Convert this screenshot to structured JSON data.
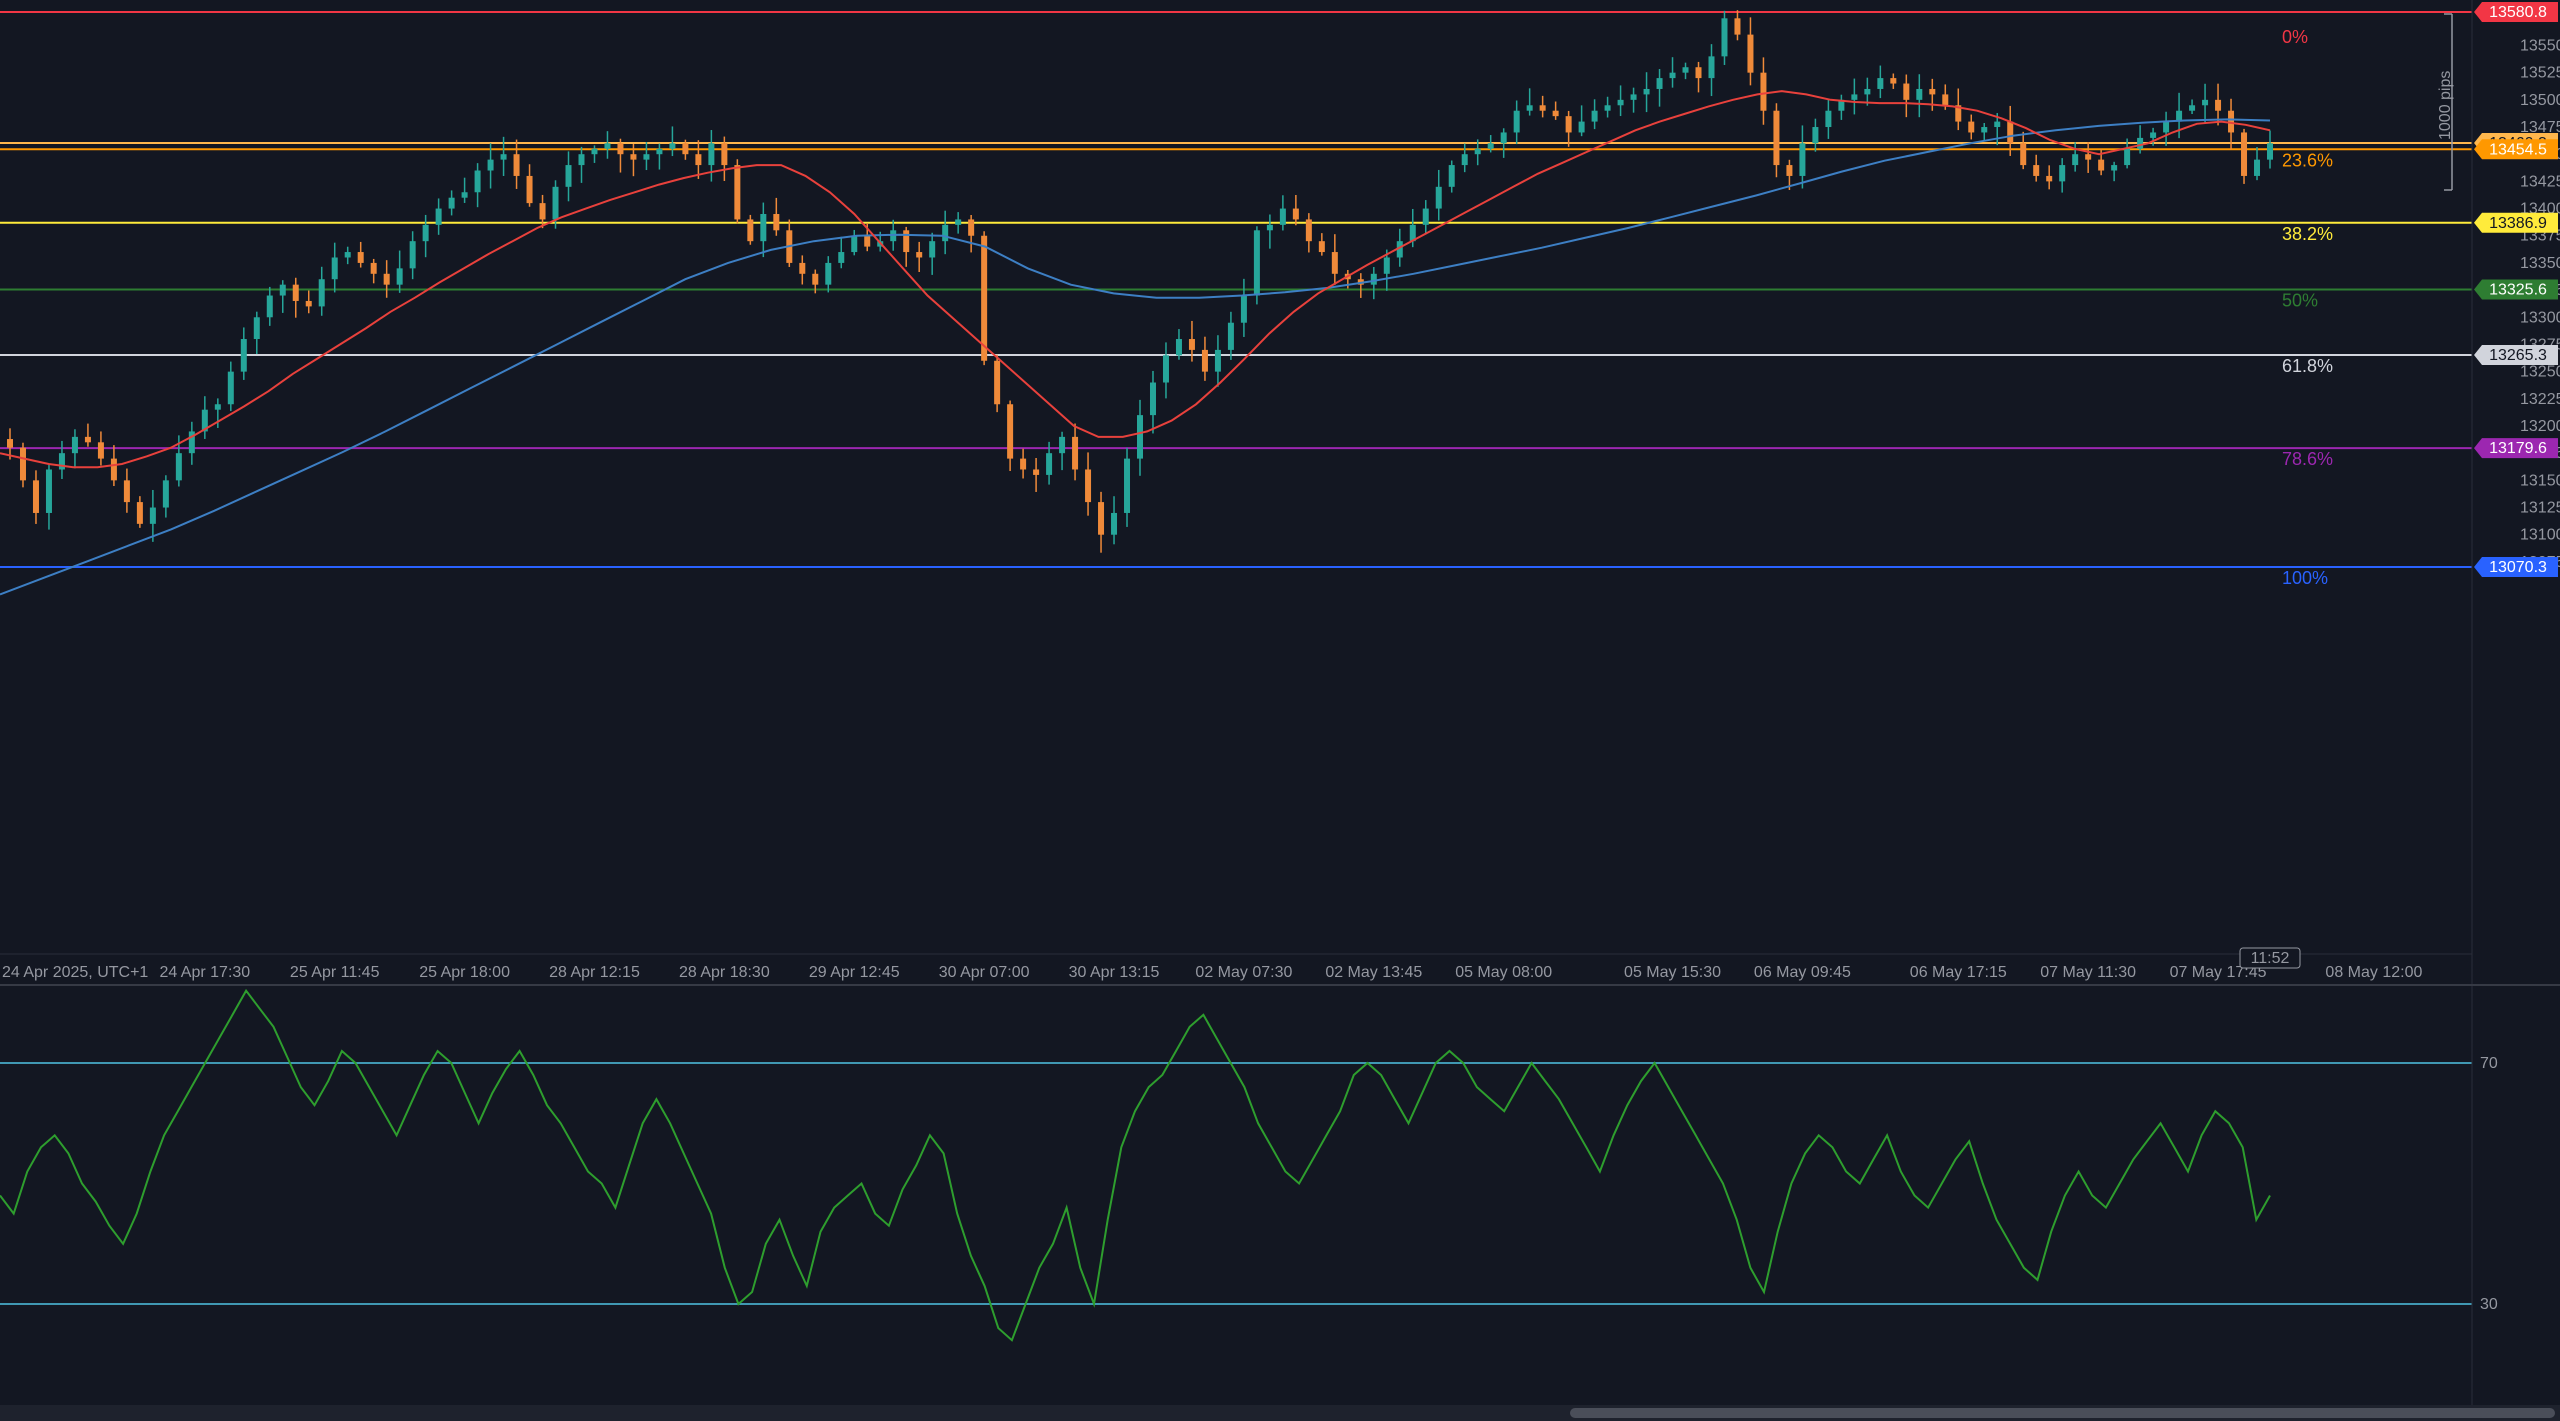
{
  "chart_data": {
    "type": "candlestick",
    "instrument_note": "",
    "price_axis": {
      "min": 13050,
      "max": 13590,
      "ticks": [
        13550,
        13525,
        13500,
        13475,
        13450,
        13425,
        13400,
        13375,
        13350,
        13325,
        13300,
        13275,
        13250,
        13225,
        13200,
        13175,
        13150,
        13125,
        13100,
        13075
      ],
      "tick_labels": [
        "13550.0",
        "13525.0",
        "13500.0",
        "13475.0",
        "13450.0",
        "13425.0",
        "13400.0",
        "13375.0",
        "13350.0",
        "13325.0",
        "13300.0",
        "13275.0",
        "13250.0",
        "13225.0",
        "13200.0",
        "13175.0",
        "13150.0",
        "13125.0",
        "13100.0",
        "13075.0"
      ]
    },
    "time_axis": {
      "labels": [
        "24 Apr 2025, UTC+1",
        "24 Apr 17:30",
        "25 Apr 11:45",
        "25 Apr 18:00",
        "28 Apr 12:15",
        "28 Apr 18:30",
        "29 Apr 12:45",
        "30 Apr 07:00",
        "30 Apr 13:15",
        "02 May 07:30",
        "02 May 13:45",
        "05 May 08:00",
        "05 May 15:30",
        "06 May 09:45",
        "06 May 17:15",
        "07 May 11:30",
        "07 May 17:45",
        "08 May 12:00"
      ],
      "label_positions_index": [
        0,
        15,
        25,
        35,
        45,
        55,
        65,
        75,
        85,
        95,
        105,
        115,
        128,
        138,
        150,
        160,
        170,
        182
      ]
    },
    "fib_levels": [
      {
        "label": "0%",
        "price": 13580.8,
        "tag": "13580.8",
        "color": "#f23645"
      },
      {
        "label": "23.6%",
        "price": 13454.5,
        "tag": "13454.5",
        "color": "#ff9800"
      },
      {
        "label": "38.2%",
        "price": 13386.9,
        "tag": "13386.9",
        "color": "#ffeb3b"
      },
      {
        "label": "50%",
        "price": 13325.6,
        "tag": "13325.6",
        "color": "#2e7d32"
      },
      {
        "label": "61.8%",
        "price": 13265.3,
        "tag": "13265.3",
        "color": "#d1d4dc"
      },
      {
        "label": "78.6%",
        "price": 13179.6,
        "tag": "13179.6",
        "color": "#9c27b0"
      },
      {
        "label": "100%",
        "price": 13070.3,
        "tag": "13070.3",
        "color": "#2962ff"
      }
    ],
    "extra_lines": [
      {
        "price": 13460.3,
        "tag": "13460.3",
        "color": "#ffb74d"
      }
    ],
    "range_marker": "1000 pips",
    "countdown": "11:52",
    "series": [
      {
        "name": "close",
        "values": [
          13180,
          13150,
          13120,
          13160,
          13175,
          13190,
          13185,
          13170,
          13150,
          13130,
          13110,
          13125,
          13150,
          13175,
          13195,
          13215,
          13220,
          13250,
          13280,
          13300,
          13320,
          13330,
          13315,
          13310,
          13335,
          13355,
          13360,
          13350,
          13340,
          13330,
          13345,
          13370,
          13385,
          13400,
          13410,
          13415,
          13435,
          13445,
          13450,
          13430,
          13405,
          13390,
          13420,
          13440,
          13450,
          13455,
          13460,
          13450,
          13445,
          13450,
          13455,
          13460,
          13450,
          13440,
          13460,
          13440,
          13390,
          13370,
          13395,
          13380,
          13350,
          13340,
          13330,
          13350,
          13360,
          13375,
          13365,
          13370,
          13380,
          13360,
          13355,
          13370,
          13385,
          13390,
          13375,
          13260,
          13220,
          13170,
          13160,
          13155,
          13175,
          13190,
          13160,
          13130,
          13100,
          13120,
          13170,
          13210,
          13240,
          13265,
          13280,
          13270,
          13250,
          13270,
          13295,
          13320,
          13380,
          13385,
          13400,
          13390,
          13370,
          13360,
          13340,
          13335,
          13330,
          13340,
          13355,
          13370,
          13385,
          13400,
          13420,
          13440,
          13450,
          13455,
          13460,
          13470,
          13490,
          13495,
          13490,
          13485,
          13470,
          13480,
          13490,
          13495,
          13500,
          13505,
          13510,
          13520,
          13525,
          13530,
          13520,
          13540,
          13575,
          13560,
          13525,
          13490,
          13440,
          13430,
          13460,
          13475,
          13490,
          13500,
          13505,
          13510,
          13520,
          13515,
          13500,
          13510,
          13505,
          13495,
          13480,
          13470,
          13475,
          13480,
          13460,
          13440,
          13430,
          13425,
          13440,
          13450,
          13445,
          13435,
          13440,
          13455,
          13465,
          13470,
          13480,
          13490,
          13495,
          13500,
          13490,
          13470,
          13430,
          13445,
          13460
        ]
      },
      {
        "name": "ma_fast",
        "values": [
          13175,
          13170,
          13165,
          13162,
          13162,
          13165,
          13172,
          13180,
          13192,
          13205,
          13218,
          13232,
          13248,
          13262,
          13276,
          13290,
          13305,
          13318,
          13332,
          13345,
          13358,
          13370,
          13382,
          13392,
          13400,
          13408,
          13415,
          13422,
          13428,
          13433,
          13437,
          13440,
          13440,
          13430,
          13415,
          13395,
          13370,
          13345,
          13320,
          13300,
          13280,
          13260,
          13240,
          13220,
          13200,
          13190,
          13190,
          13195,
          13205,
          13220,
          13240,
          13262,
          13285,
          13305,
          13322,
          13335,
          13348,
          13360,
          13372,
          13384,
          13396,
          13408,
          13420,
          13432,
          13442,
          13452,
          13462,
          13472,
          13480,
          13487,
          13494,
          13500,
          13505,
          13508,
          13505,
          13500,
          13498,
          13497,
          13497,
          13496,
          13494,
          13490,
          13483,
          13474,
          13463,
          13455,
          13450,
          13455,
          13460,
          13470,
          13478,
          13480,
          13477,
          13472
        ]
      },
      {
        "name": "ma_slow",
        "values": [
          13045,
          13060,
          13075,
          13090,
          13105,
          13122,
          13140,
          13158,
          13176,
          13195,
          13215,
          13235,
          13255,
          13275,
          13295,
          13315,
          13335,
          13350,
          13362,
          13370,
          13375,
          13376,
          13375,
          13365,
          13345,
          13330,
          13322,
          13318,
          13318,
          13320,
          13323,
          13327,
          13333,
          13340,
          13348,
          13356,
          13364,
          13373,
          13382,
          13392,
          13402,
          13412,
          13423,
          13434,
          13444,
          13452,
          13460,
          13467,
          13472,
          13476,
          13479,
          13481,
          13482,
          13481
        ]
      }
    ],
    "rsi": {
      "levels": [
        70,
        30
      ],
      "level_labels": [
        "70",
        "30"
      ],
      "min": 15,
      "max": 85,
      "values": [
        48,
        45,
        52,
        56,
        58,
        55,
        50,
        47,
        43,
        40,
        45,
        52,
        58,
        62,
        66,
        70,
        74,
        78,
        82,
        79,
        76,
        71,
        66,
        63,
        67,
        72,
        70,
        66,
        62,
        58,
        63,
        68,
        72,
        70,
        65,
        60,
        65,
        69,
        72,
        68,
        63,
        60,
        56,
        52,
        50,
        46,
        53,
        60,
        64,
        60,
        55,
        50,
        45,
        36,
        30,
        32,
        40,
        44,
        38,
        33,
        42,
        46,
        48,
        50,
        45,
        43,
        49,
        53,
        58,
        55,
        45,
        38,
        33,
        26,
        24,
        30,
        36,
        40,
        46,
        36,
        30,
        44,
        56,
        62,
        66,
        68,
        72,
        76,
        78,
        74,
        70,
        66,
        60,
        56,
        52,
        50,
        54,
        58,
        62,
        68,
        70,
        68,
        64,
        60,
        65,
        70,
        72,
        70,
        66,
        64,
        62,
        66,
        70,
        67,
        64,
        60,
        56,
        52,
        58,
        63,
        67,
        70,
        66,
        62,
        58,
        54,
        50,
        44,
        36,
        32,
        42,
        50,
        55,
        58,
        56,
        52,
        50,
        54,
        58,
        52,
        48,
        46,
        50,
        54,
        57,
        50,
        44,
        40,
        36,
        34,
        42,
        48,
        52,
        48,
        46,
        50,
        54,
        57,
        60,
        56,
        52,
        58,
        62,
        60,
        56,
        44,
        48
      ]
    }
  }
}
